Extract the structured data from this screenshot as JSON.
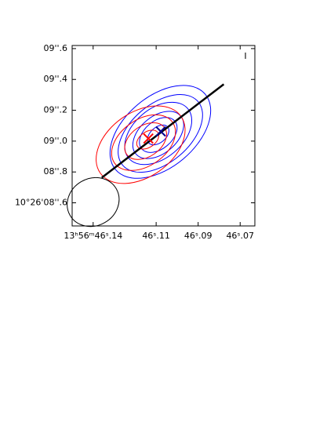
{
  "chart_data": {
    "type": "contour",
    "xlim": [
      46.15,
      46.063
    ],
    "ylim": [
      8.45,
      9.62
    ],
    "xticks": [
      {
        "value": 46.14,
        "label": "13ʰ56ᵐ46ˢ.14"
      },
      {
        "value": 46.11,
        "label": "46ˢ.11"
      },
      {
        "value": 46.09,
        "label": "46ˢ.09"
      },
      {
        "value": 46.07,
        "label": "46ˢ.07"
      }
    ],
    "yticks": [
      {
        "value": 9.6,
        "label": "09''.6"
      },
      {
        "value": 9.4,
        "label": "09''.4"
      },
      {
        "value": 9.2,
        "label": "09''.2"
      },
      {
        "value": 9.0,
        "label": "09''.0"
      },
      {
        "value": 8.8,
        "label": "08''.8"
      },
      {
        "value": 8.6,
        "label": "10°26'08''.6"
      }
    ],
    "annotation": "I",
    "series": [
      {
        "color": "#0000ff",
        "contours": [
          {
            "x": 46.108,
            "y": 9.06,
            "a": 0.38,
            "b": 0.23,
            "angle": -40
          },
          {
            "x": 46.108,
            "y": 9.05,
            "a": 0.32,
            "b": 0.19,
            "angle": -40
          },
          {
            "x": 46.109,
            "y": 9.05,
            "a": 0.25,
            "b": 0.16,
            "angle": -40
          },
          {
            "x": 46.109,
            "y": 9.04,
            "a": 0.19,
            "b": 0.12,
            "angle": -40
          },
          {
            "x": 46.109,
            "y": 9.04,
            "a": 0.14,
            "b": 0.09,
            "angle": -40
          },
          {
            "x": 46.109,
            "y": 9.04,
            "a": 0.08,
            "b": 0.05,
            "angle": -40
          }
        ]
      },
      {
        "color": "#ff0000",
        "contours": [
          {
            "x": 46.1174,
            "y": 8.977,
            "a": 0.32,
            "b": 0.21,
            "angle": -35
          },
          {
            "x": 46.116,
            "y": 8.99,
            "a": 0.23,
            "b": 0.15,
            "angle": -35
          },
          {
            "x": 46.115,
            "y": 9.0,
            "a": 0.15,
            "b": 0.1,
            "angle": -35
          },
          {
            "x": 46.114,
            "y": 9.01,
            "a": 0.08,
            "b": 0.05,
            "angle": -35
          }
        ]
      }
    ],
    "crosses": [
      {
        "x": 46.1137,
        "y": 9.017,
        "color": "#ff0000"
      },
      {
        "x": 46.1078,
        "y": 9.063,
        "color": "#00008b"
      }
    ],
    "line": {
      "x": [
        46.1359,
        46.0778
      ],
      "y": [
        8.763,
        9.369
      ],
      "color": "#000000"
    },
    "beam": {
      "x": 46.14,
      "y": 8.605,
      "a": 0.173,
      "b": 0.153,
      "angle": -30
    }
  }
}
